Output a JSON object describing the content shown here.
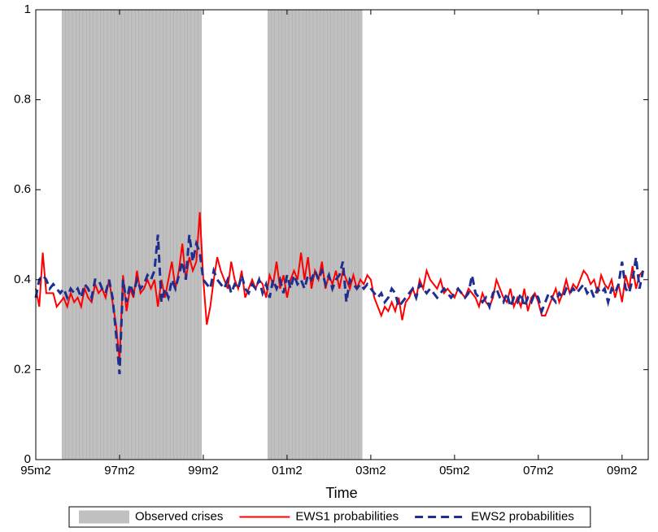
{
  "chart_data": {
    "type": "line",
    "xlabel": "Time",
    "categories": [
      "95m2",
      null,
      null,
      null,
      null,
      null,
      null,
      null,
      null,
      null,
      null,
      null,
      null,
      null,
      null,
      null,
      null,
      null,
      null,
      null,
      null,
      null,
      null,
      null,
      "97m2",
      null,
      null,
      null,
      null,
      null,
      null,
      null,
      null,
      null,
      null,
      null,
      null,
      null,
      null,
      null,
      null,
      null,
      null,
      null,
      null,
      null,
      null,
      null,
      "99m2",
      null,
      null,
      null,
      null,
      null,
      null,
      null,
      null,
      null,
      null,
      null,
      null,
      null,
      null,
      null,
      null,
      null,
      null,
      null,
      null,
      null,
      null,
      null,
      "01m2",
      null,
      null,
      null,
      null,
      null,
      null,
      null,
      null,
      null,
      null,
      null,
      null,
      null,
      null,
      null,
      null,
      null,
      null,
      null,
      null,
      null,
      null,
      null,
      "03m2",
      null,
      null,
      null,
      null,
      null,
      null,
      null,
      null,
      null,
      null,
      null,
      null,
      null,
      null,
      null,
      null,
      null,
      null,
      null,
      null,
      null,
      null,
      null,
      "05m2",
      null,
      null,
      null,
      null,
      null,
      null,
      null,
      null,
      null,
      null,
      null,
      null,
      null,
      null,
      null,
      null,
      null,
      null,
      null,
      null,
      null,
      null,
      null,
      "07m2",
      null,
      null,
      null,
      null,
      null,
      null,
      null,
      null,
      null,
      null,
      null,
      null,
      null,
      null,
      null,
      null,
      null,
      null,
      null,
      null,
      null,
      null,
      null,
      "09m2",
      null,
      null,
      null,
      null,
      null,
      null
    ],
    "series": [
      {
        "name": "Observed crises",
        "type": "bar",
        "color": "#c0c0c0",
        "values": [
          0,
          0,
          0,
          0,
          0,
          0,
          0,
          0,
          1,
          1,
          1,
          1,
          1,
          1,
          1,
          1,
          1,
          1,
          1,
          1,
          1,
          1,
          1,
          1,
          1,
          1,
          1,
          1,
          1,
          1,
          1,
          1,
          1,
          1,
          1,
          1,
          1,
          1,
          1,
          1,
          1,
          1,
          1,
          1,
          1,
          1,
          1,
          1,
          0,
          0,
          0,
          0,
          0,
          0,
          0,
          0,
          0,
          0,
          0,
          0,
          0,
          0,
          0,
          0,
          0,
          0,
          0,
          1,
          1,
          1,
          1,
          1,
          1,
          1,
          1,
          1,
          1,
          1,
          1,
          1,
          1,
          1,
          1,
          1,
          1,
          1,
          1,
          1,
          1,
          1,
          1,
          1,
          1,
          1,
          0,
          0,
          0,
          0,
          0,
          0,
          0,
          0,
          0,
          0,
          0,
          0,
          0,
          0,
          0,
          0,
          0,
          0,
          0,
          0,
          0,
          0,
          0,
          0,
          0,
          0,
          0,
          0,
          0,
          0,
          0,
          0,
          0,
          0,
          0,
          0,
          0,
          0,
          0,
          0,
          0,
          0,
          0,
          0,
          0,
          0,
          0,
          0,
          0,
          0,
          0,
          0,
          0,
          0,
          0,
          0,
          0,
          0,
          0,
          0,
          0,
          0,
          0,
          0,
          0,
          0,
          0,
          0,
          0,
          0,
          0,
          0,
          0,
          0,
          0,
          0,
          0,
          0,
          0,
          0,
          0
        ]
      },
      {
        "name": "EWS1 probabilities",
        "type": "line",
        "color": "#ff0000",
        "linestyle": "solid",
        "values": [
          0.38,
          0.34,
          0.46,
          0.37,
          0.37,
          0.37,
          0.34,
          0.35,
          0.36,
          0.34,
          0.37,
          0.35,
          0.36,
          0.34,
          0.38,
          0.36,
          0.35,
          0.39,
          0.37,
          0.38,
          0.36,
          0.4,
          0.35,
          0.3,
          0.22,
          0.41,
          0.33,
          0.38,
          0.36,
          0.42,
          0.37,
          0.38,
          0.4,
          0.38,
          0.4,
          0.34,
          0.4,
          0.36,
          0.4,
          0.44,
          0.38,
          0.42,
          0.48,
          0.4,
          0.45,
          0.42,
          0.44,
          0.55,
          0.4,
          0.3,
          0.34,
          0.4,
          0.45,
          0.42,
          0.4,
          0.38,
          0.44,
          0.4,
          0.38,
          0.42,
          0.36,
          0.38,
          0.4,
          0.38,
          0.4,
          0.39,
          0.36,
          0.41,
          0.39,
          0.44,
          0.38,
          0.41,
          0.36,
          0.4,
          0.42,
          0.4,
          0.46,
          0.4,
          0.45,
          0.38,
          0.42,
          0.4,
          0.44,
          0.38,
          0.41,
          0.39,
          0.42,
          0.38,
          0.42,
          0.4,
          0.38,
          0.41,
          0.38,
          0.4,
          0.39,
          0.41,
          0.4,
          0.36,
          0.34,
          0.32,
          0.34,
          0.33,
          0.35,
          0.33,
          0.36,
          0.31,
          0.35,
          0.36,
          0.38,
          0.36,
          0.4,
          0.38,
          0.42,
          0.4,
          0.39,
          0.38,
          0.4,
          0.37,
          0.38,
          0.37,
          0.36,
          0.38,
          0.37,
          0.36,
          0.38,
          0.37,
          0.36,
          0.34,
          0.37,
          0.35,
          0.34,
          0.36,
          0.4,
          0.38,
          0.36,
          0.35,
          0.38,
          0.34,
          0.36,
          0.34,
          0.38,
          0.33,
          0.36,
          0.37,
          0.35,
          0.32,
          0.32,
          0.34,
          0.36,
          0.38,
          0.35,
          0.37,
          0.4,
          0.37,
          0.39,
          0.38,
          0.4,
          0.42,
          0.41,
          0.39,
          0.4,
          0.37,
          0.41,
          0.39,
          0.38,
          0.4,
          0.36,
          0.39,
          0.35,
          0.41,
          0.38,
          0.43,
          0.38,
          0.41,
          0.42
        ]
      },
      {
        "name": "EWS2 probabilities",
        "type": "line",
        "color": "#1f2f8f",
        "linestyle": "dashed",
        "values": [
          0.36,
          0.4,
          0.41,
          0.4,
          0.38,
          0.39,
          0.38,
          0.37,
          0.38,
          0.36,
          0.38,
          0.37,
          0.38,
          0.36,
          0.39,
          0.38,
          0.36,
          0.4,
          0.4,
          0.38,
          0.37,
          0.4,
          0.36,
          0.28,
          0.19,
          0.4,
          0.35,
          0.39,
          0.37,
          0.4,
          0.38,
          0.39,
          0.41,
          0.4,
          0.42,
          0.5,
          0.35,
          0.38,
          0.36,
          0.4,
          0.38,
          0.41,
          0.44,
          0.4,
          0.5,
          0.44,
          0.48,
          0.46,
          0.4,
          0.39,
          0.38,
          0.42,
          0.4,
          0.39,
          0.38,
          0.4,
          0.37,
          0.39,
          0.38,
          0.41,
          0.38,
          0.37,
          0.39,
          0.38,
          0.4,
          0.37,
          0.39,
          0.36,
          0.4,
          0.38,
          0.4,
          0.37,
          0.41,
          0.38,
          0.41,
          0.39,
          0.4,
          0.38,
          0.41,
          0.4,
          0.42,
          0.4,
          0.42,
          0.39,
          0.41,
          0.38,
          0.4,
          0.41,
          0.44,
          0.35,
          0.4,
          0.39,
          0.38,
          0.39,
          0.38,
          0.39,
          0.38,
          0.37,
          0.36,
          0.37,
          0.35,
          0.36,
          0.38,
          0.37,
          0.34,
          0.35,
          0.36,
          0.37,
          0.38,
          0.36,
          0.39,
          0.38,
          0.37,
          0.38,
          0.37,
          0.36,
          0.37,
          0.38,
          0.37,
          0.36,
          0.37,
          0.38,
          0.37,
          0.36,
          0.37,
          0.41,
          0.37,
          0.36,
          0.35,
          0.36,
          0.34,
          0.37,
          0.38,
          0.36,
          0.35,
          0.37,
          0.34,
          0.36,
          0.35,
          0.37,
          0.34,
          0.36,
          0.35,
          0.37,
          0.36,
          0.33,
          0.35,
          0.37,
          0.36,
          0.35,
          0.37,
          0.36,
          0.38,
          0.37,
          0.38,
          0.37,
          0.38,
          0.39,
          0.37,
          0.38,
          0.36,
          0.38,
          0.37,
          0.38,
          0.35,
          0.38,
          0.37,
          0.39,
          0.44,
          0.38,
          0.37,
          0.4,
          0.45,
          0.38,
          0.42
        ]
      }
    ],
    "ylim": [
      0,
      1
    ],
    "yticks": [
      0,
      0.2,
      0.4,
      0.6,
      0.8,
      1
    ],
    "grid": false,
    "legend": "bottom"
  }
}
